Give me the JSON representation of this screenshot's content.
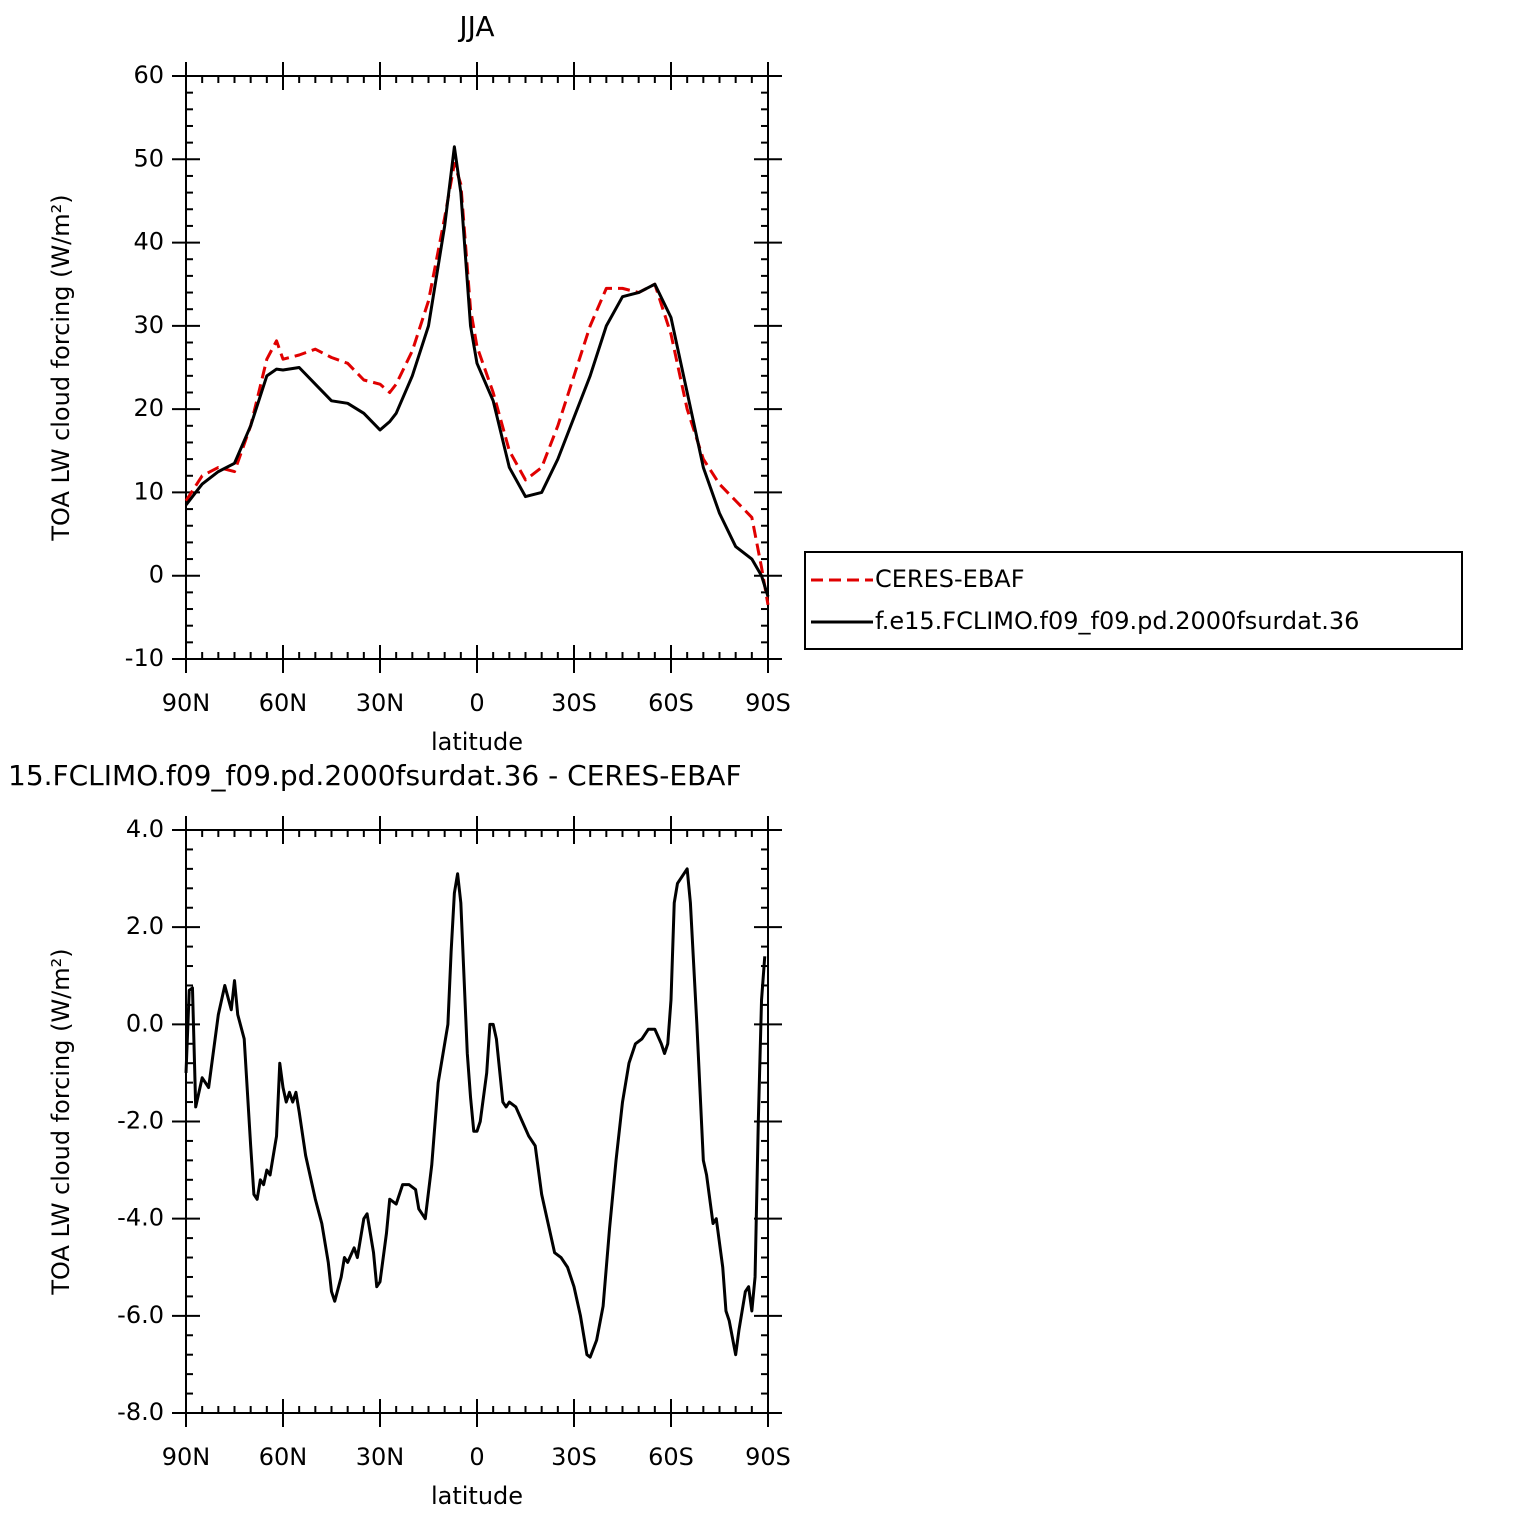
{
  "chart_data": [
    {
      "type": "line",
      "title": "JJA",
      "x_label": "latitude",
      "y_label": "TOA LW cloud forcing (W/m²)",
      "x": [
        90,
        85,
        80,
        75,
        70,
        65,
        62,
        60,
        55,
        50,
        45,
        40,
        35,
        30,
        27,
        25,
        20,
        15,
        10,
        7,
        5,
        2,
        0,
        -5,
        -10,
        -15,
        -20,
        -25,
        -30,
        -35,
        -40,
        -45,
        -50,
        -55,
        -60,
        -65,
        -70,
        -75,
        -80,
        -85,
        -88,
        -90
      ],
      "xlim": [
        90,
        -90
      ],
      "xticks": [
        {
          "value": 90,
          "label": "90N"
        },
        {
          "value": 60,
          "label": "60N"
        },
        {
          "value": 30,
          "label": "30N"
        },
        0,
        {
          "value": -30,
          "label": "30S"
        },
        {
          "value": -60,
          "label": "60S"
        },
        {
          "value": -90,
          "label": "90S"
        }
      ],
      "ylim": [
        -10,
        60
      ],
      "yticks": [
        -10,
        0,
        10,
        20,
        30,
        40,
        50,
        60
      ],
      "legend": "right",
      "series": [
        {
          "name": "CERES-EBAF",
          "color": "#e00000",
          "line_style": "dashed",
          "values": [
            9,
            12,
            13,
            12.5,
            18,
            26,
            28.2,
            26,
            26.5,
            27.2,
            26.2,
            25.5,
            23.5,
            23,
            22,
            23,
            27,
            33,
            43,
            49.5,
            47,
            32,
            27.5,
            22,
            15,
            11.5,
            13,
            18,
            24,
            30,
            34.5,
            34.5,
            34,
            35,
            29,
            20,
            14,
            11,
            9,
            7,
            1,
            -3.5
          ]
        },
        {
          "name": "f.e15.FCLIMO.f09_f09.pd.2000fsurdat.36",
          "color": "#000000",
          "line_style": "solid",
          "values": [
            8.5,
            11,
            12.5,
            13.5,
            18,
            24,
            24.8,
            24.7,
            25,
            23,
            21,
            20.7,
            19.5,
            17.5,
            18.5,
            19.5,
            24,
            30,
            42,
            51.5,
            46,
            30,
            25.5,
            21,
            13,
            9.5,
            10,
            14,
            19,
            24,
            30,
            33.5,
            34,
            35,
            31,
            22,
            13,
            7.5,
            3.5,
            2,
            0,
            -2.5
          ]
        }
      ]
    },
    {
      "type": "line",
      "title": "15.FCLIMO.f09_f09.pd.2000fsurdat.36 - CERES-EBAF",
      "x_label": "latitude",
      "y_label": "TOA LW cloud forcing (W/m²)",
      "x": [
        90,
        89,
        88,
        87,
        85,
        83,
        80,
        78,
        76,
        75,
        74,
        72,
        70,
        69,
        68,
        67,
        66,
        65,
        64,
        62,
        61,
        60,
        59,
        58,
        57,
        56,
        55,
        53,
        52,
        50,
        48,
        46,
        45,
        44,
        42,
        41,
        40,
        38,
        37,
        35,
        34,
        32,
        31,
        30,
        28,
        27,
        25,
        23,
        21,
        19,
        18,
        16,
        14,
        12,
        10,
        9,
        8,
        7,
        6,
        5,
        3,
        2,
        1,
        0,
        -1,
        -3,
        -4,
        -5,
        -6,
        -8,
        -9,
        -10,
        -12,
        -14,
        -16,
        -18,
        -20,
        -22,
        -24,
        -26,
        -28,
        -30,
        -32,
        -34,
        -35,
        -37,
        -39,
        -41,
        -43,
        -45,
        -47,
        -49,
        -51,
        -53,
        -55,
        -57,
        -58,
        -59,
        -60,
        -61,
        -62,
        -64,
        -65,
        -66,
        -68,
        -70,
        -71,
        -73,
        -74,
        -76,
        -77,
        -78,
        -80,
        -81,
        -83,
        -84,
        -85,
        -86,
        -87,
        -88,
        -89
      ],
      "xlim": [
        90,
        -90
      ],
      "xticks": [
        {
          "value": 90,
          "label": "90N"
        },
        {
          "value": 60,
          "label": "60N"
        },
        {
          "value": 30,
          "label": "30N"
        },
        0,
        {
          "value": -30,
          "label": "30S"
        },
        {
          "value": -60,
          "label": "60S"
        },
        {
          "value": -90,
          "label": "90S"
        }
      ],
      "ylim": [
        -8,
        4
      ],
      "yticks": [
        {
          "value": -8,
          "label": "-8.0"
        },
        {
          "value": -6,
          "label": "-6.0"
        },
        {
          "value": -4,
          "label": "-4.0"
        },
        {
          "value": -2,
          "label": "-2.0"
        },
        {
          "value": 0,
          "label": "0.0"
        },
        {
          "value": 2,
          "label": "2.0"
        },
        {
          "value": 4,
          "label": "4.0"
        }
      ],
      "series": [
        {
          "color": "#000000",
          "values": [
            -1.0,
            0.7,
            0.75,
            -1.7,
            -1.1,
            -1.3,
            0.2,
            0.8,
            0.3,
            0.9,
            0.2,
            -0.3,
            -2.5,
            -3.5,
            -3.6,
            -3.2,
            -3.3,
            -3.0,
            -3.1,
            -2.3,
            -0.8,
            -1.3,
            -1.6,
            -1.4,
            -1.6,
            -1.4,
            -1.8,
            -2.7,
            -3.0,
            -3.6,
            -4.1,
            -4.9,
            -5.5,
            -5.7,
            -5.2,
            -4.8,
            -4.9,
            -4.6,
            -4.8,
            -4.0,
            -3.9,
            -4.7,
            -5.4,
            -5.3,
            -4.3,
            -3.6,
            -3.7,
            -3.3,
            -3.3,
            -3.4,
            -3.8,
            -4.0,
            -2.9,
            -1.2,
            -0.4,
            0.0,
            1.5,
            2.7,
            3.1,
            2.5,
            -0.6,
            -1.5,
            -2.2,
            -2.2,
            -2.0,
            -1.0,
            0.0,
            0.0,
            -0.3,
            -1.6,
            -1.7,
            -1.6,
            -1.7,
            -2.0,
            -2.3,
            -2.5,
            -3.5,
            -4.1,
            -4.7,
            -4.8,
            -5.0,
            -5.4,
            -6.0,
            -6.8,
            -6.85,
            -6.5,
            -5.8,
            -4.2,
            -2.8,
            -1.6,
            -0.8,
            -0.4,
            -0.3,
            -0.1,
            -0.1,
            -0.4,
            -0.6,
            -0.4,
            0.5,
            2.5,
            2.9,
            3.1,
            3.2,
            2.5,
            0.0,
            -2.8,
            -3.1,
            -4.1,
            -4.0,
            -5.0,
            -5.9,
            -6.1,
            -6.8,
            -6.3,
            -5.5,
            -5.4,
            -5.9,
            -5.2,
            -2.0,
            0.5,
            1.4
          ]
        }
      ]
    }
  ]
}
